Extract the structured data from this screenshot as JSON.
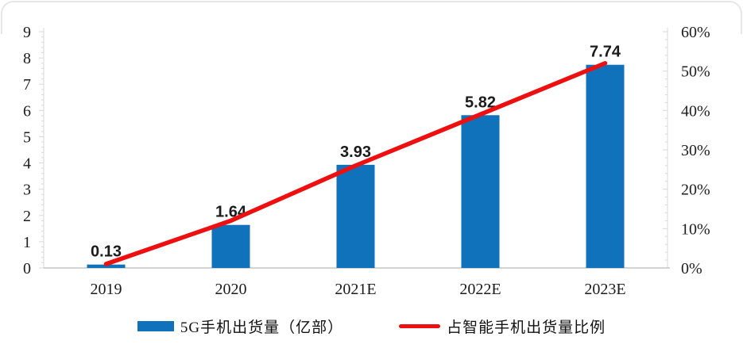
{
  "chart_data": {
    "type": "combo",
    "title": "",
    "categories": [
      "2019",
      "2020",
      "2021E",
      "2022E",
      "2023E"
    ],
    "series": [
      {
        "name": "5G手机出货量（亿部）",
        "type": "bar",
        "axis": "left",
        "color": "#0f72ba",
        "values": [
          0.13,
          1.64,
          3.93,
          5.82,
          7.74
        ],
        "data_labels": [
          "0.13",
          "1.64",
          "3.93",
          "5.82",
          "7.74"
        ]
      },
      {
        "name": "占智能手机出货量比例",
        "type": "line",
        "axis": "right",
        "color": "#ee1010",
        "values": [
          1,
          12,
          26,
          39,
          52
        ]
      }
    ],
    "left_axis": {
      "min": 0,
      "max": 9,
      "step": 1,
      "tick_labels": [
        "0",
        "1",
        "2",
        "3",
        "4",
        "5",
        "6",
        "7",
        "8",
        "9"
      ]
    },
    "right_axis": {
      "min": 0,
      "max": 60,
      "step": 10,
      "tick_labels": [
        "0%",
        "10%",
        "20%",
        "30%",
        "40%",
        "50%",
        "60%"
      ]
    },
    "grid": false,
    "legend_position": "bottom",
    "axis_line_color": "#d9d9d9",
    "baseline_color": "#c6c6c6",
    "label_color": "#1b1b1b"
  }
}
